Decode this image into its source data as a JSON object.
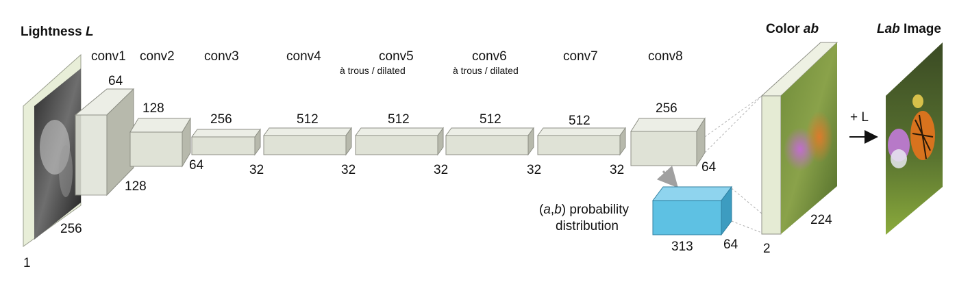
{
  "titles": {
    "input": {
      "text": "Lightness ",
      "italic": "L"
    },
    "color_ab": {
      "text": "Color ",
      "italic": "ab"
    },
    "lab_image": {
      "italic": "Lab",
      "text": " Image"
    }
  },
  "layers": [
    {
      "name": "conv1",
      "sub": "",
      "depth": "64",
      "h": "128"
    },
    {
      "name": "conv2",
      "sub": "",
      "depth": "128",
      "h": "64"
    },
    {
      "name": "conv3",
      "sub": "",
      "depth": "256",
      "h": "32"
    },
    {
      "name": "conv4",
      "sub": "",
      "depth": "512",
      "h": "32"
    },
    {
      "name": "conv5",
      "sub": "à trous / dilated",
      "depth": "512",
      "h": "32"
    },
    {
      "name": "conv6",
      "sub": "à trous / dilated",
      "depth": "512",
      "h": "32"
    },
    {
      "name": "conv7",
      "sub": "",
      "depth": "512",
      "h": "32"
    },
    {
      "name": "conv8",
      "sub": "",
      "depth": "256",
      "h": "64"
    }
  ],
  "input_dims": {
    "size": "256",
    "channels": "1"
  },
  "distribution": {
    "line1_open": "(",
    "line1_a": "a",
    "line1_comma": ",",
    "line1_b": "b",
    "line1_rest": ") probability",
    "line2": "distribution",
    "width": "313",
    "depth": "64"
  },
  "color_dims": {
    "channels": "2",
    "size": "224"
  },
  "plus_l": "+ L",
  "colors": {
    "block_front": "#dfe2d6",
    "block_top": "#eceee6",
    "block_side": "#b7b9ac",
    "block_stroke": "#8c8e84",
    "dist_front": "#5ec1e3",
    "dist_top": "#8fd4ee",
    "dist_side": "#3d9cc0",
    "color_panel_front": "#e5ebd4",
    "color_panel_side": "#b9bfa5"
  }
}
